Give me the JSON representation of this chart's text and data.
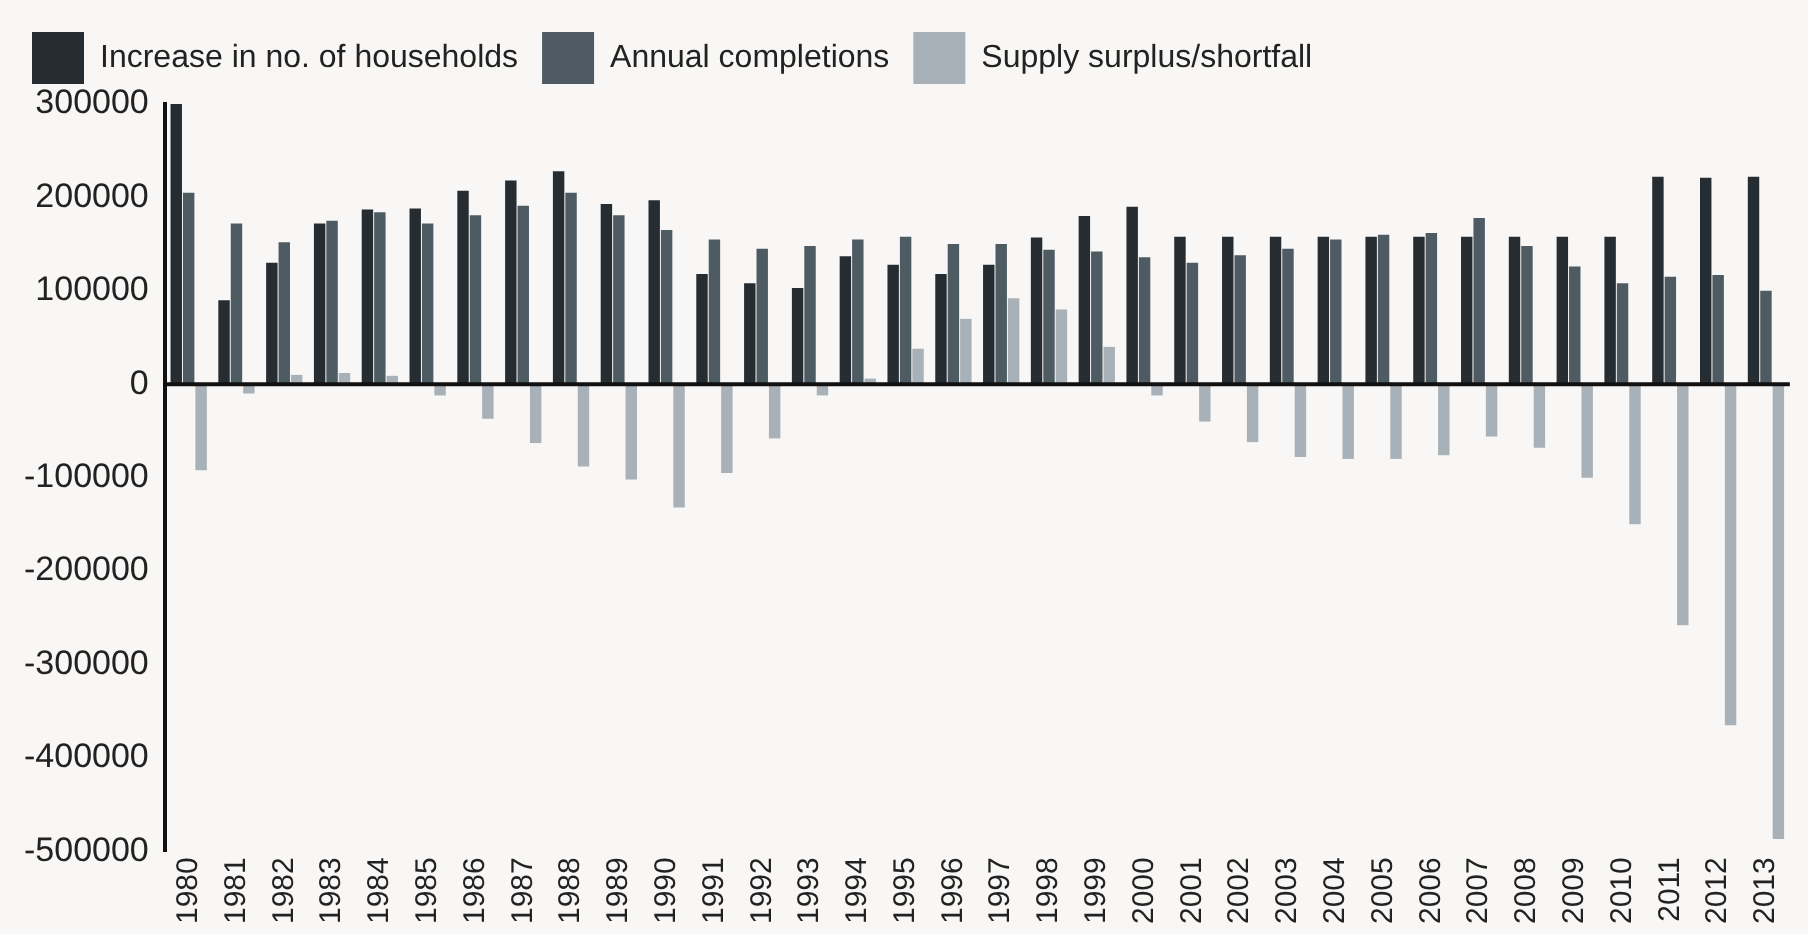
{
  "chart_data": {
    "type": "bar",
    "categories": [
      "1980",
      "1981",
      "1982",
      "1983",
      "1984",
      "1985",
      "1986",
      "1987",
      "1988",
      "1989",
      "1990",
      "1991",
      "1992",
      "1993",
      "1994",
      "1995",
      "1996",
      "1997",
      "1998",
      "1999",
      "2000",
      "2001",
      "2002",
      "2003",
      "2004",
      "2005",
      "2006",
      "2007",
      "2008",
      "2009",
      "2010",
      "2011",
      "2012",
      "2013"
    ],
    "series": [
      {
        "name": "Increase in no. of households",
        "color": "#252d33",
        "values": [
          300000,
          90000,
          130000,
          172000,
          187000,
          188000,
          207000,
          218000,
          228000,
          193000,
          197000,
          118000,
          108000,
          103000,
          137000,
          128000,
          118000,
          128000,
          157000,
          180000,
          190000,
          158000,
          158000,
          158000,
          158000,
          158000,
          158000,
          158000,
          158000,
          158000,
          158000,
          222000,
          221000,
          222000
        ]
      },
      {
        "name": "Annual completions",
        "color": "#4f5b62",
        "values": [
          205000,
          172000,
          152000,
          175000,
          184000,
          172000,
          181000,
          191000,
          205000,
          181000,
          165000,
          155000,
          145000,
          148000,
          155000,
          158000,
          150000,
          150000,
          144000,
          142000,
          136000,
          130000,
          138000,
          145000,
          155000,
          160000,
          162000,
          178000,
          148000,
          126000,
          108000,
          115000,
          117000,
          100000
        ]
      },
      {
        "name": "Supply surplus/shortfall",
        "color": "#a8b1b7",
        "values": [
          -92000,
          -10000,
          10000,
          12000,
          9000,
          -12000,
          -37000,
          -63000,
          -88000,
          -102000,
          -132000,
          -95000,
          -58000,
          -12000,
          6000,
          38000,
          70000,
          92000,
          80000,
          40000,
          -12000,
          -40000,
          -62000,
          -78000,
          -80000,
          -80000,
          -76000,
          -56000,
          -68000,
          -100000,
          -150000,
          -258000,
          -365000,
          -487000
        ]
      }
    ],
    "ylim": [
      -500000,
      300000
    ],
    "yticks": [
      -500000,
      -400000,
      -300000,
      -200000,
      -100000,
      0,
      100000,
      200000,
      300000
    ],
    "ref_lines": [
      {
        "axis": "y",
        "value": 0,
        "color": "#111111"
      }
    ],
    "grid": false,
    "legend": "top left"
  }
}
